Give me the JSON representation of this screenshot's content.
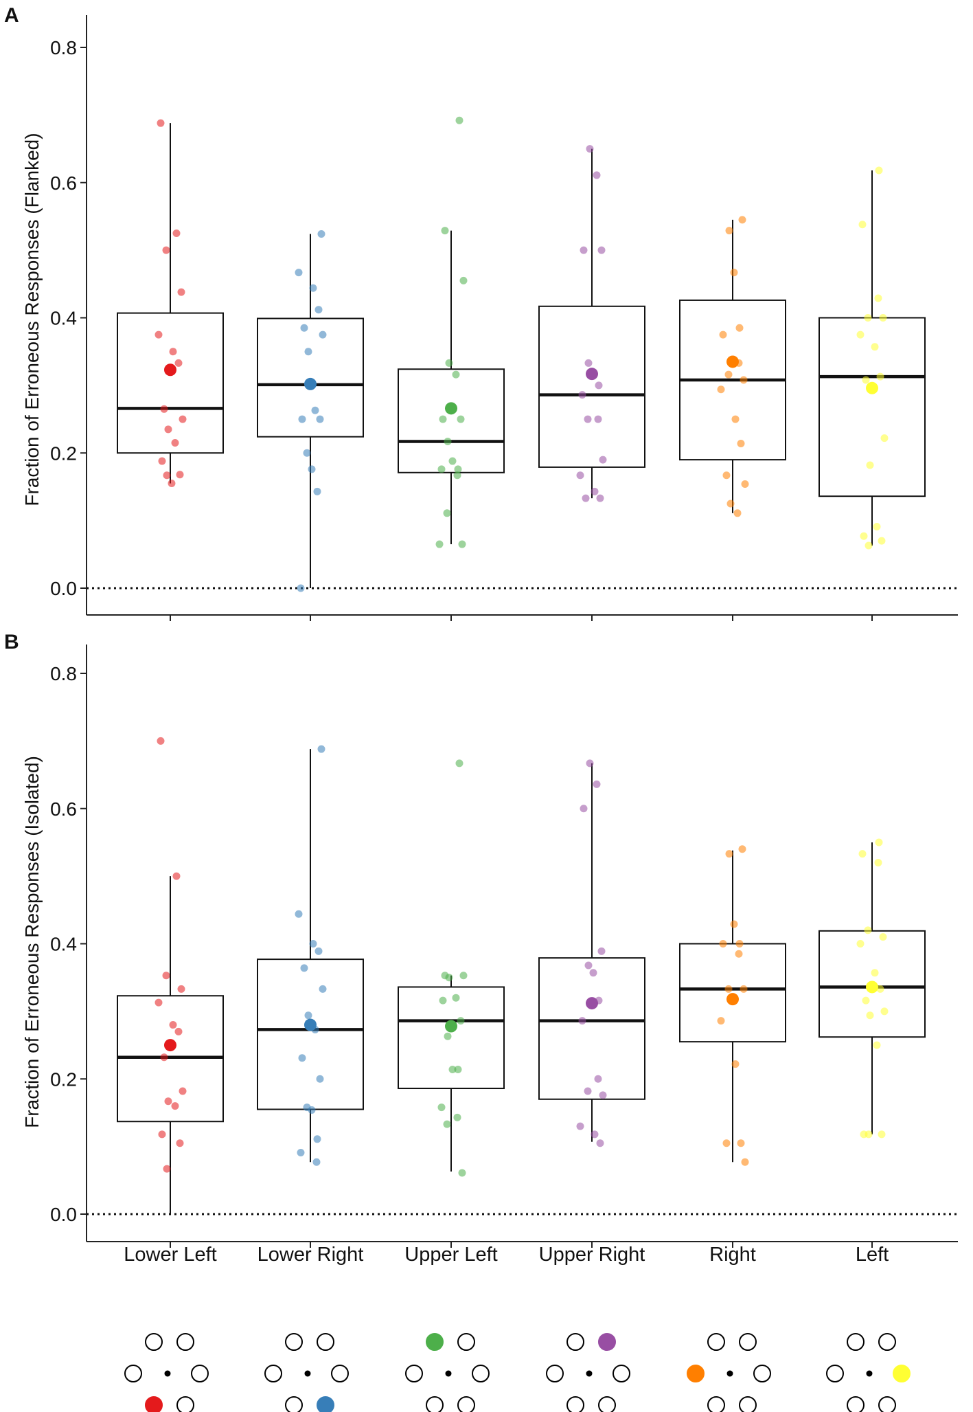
{
  "chart_data": [
    {
      "type": "boxplot",
      "panel_label": "A",
      "ylabel": "Fraction of Erroneous Responses (Flanked)",
      "ylim": [
        -0.04,
        0.85
      ],
      "yticks": [
        0.0,
        0.2,
        0.4,
        0.6,
        0.8
      ],
      "ytick_labels": [
        "0.0",
        "0.2",
        "0.4",
        "0.6",
        "0.8"
      ],
      "reference_line": 0.0,
      "categories": [
        "Lower Left",
        "Lower Right",
        "Upper Left",
        "Upper Right",
        "Right",
        "Left"
      ],
      "boxes": [
        {
          "q1": 0.2,
          "median": 0.266,
          "q3": 0.407,
          "whisker_low": 0.155,
          "whisker_high": 0.688,
          "mean": 0.323,
          "points": [
            0.688,
            0.525,
            0.5,
            0.438,
            0.375,
            0.35,
            0.333,
            0.265,
            0.25,
            0.235,
            0.215,
            0.188,
            0.168,
            0.167,
            0.155
          ]
        },
        {
          "q1": 0.224,
          "median": 0.301,
          "q3": 0.399,
          "whisker_low": 0.0,
          "whisker_high": 0.524,
          "mean": 0.302,
          "points": [
            0.524,
            0.467,
            0.444,
            0.412,
            0.385,
            0.375,
            0.35,
            0.263,
            0.25,
            0.25,
            0.2,
            0.176,
            0.143,
            0.0
          ]
        },
        {
          "q1": 0.171,
          "median": 0.217,
          "q3": 0.324,
          "whisker_low": 0.065,
          "whisker_high": 0.529,
          "mean": 0.266,
          "points": [
            0.692,
            0.529,
            0.455,
            0.333,
            0.316,
            0.25,
            0.25,
            0.217,
            0.188,
            0.176,
            0.176,
            0.167,
            0.111,
            0.065,
            0.065
          ]
        },
        {
          "q1": 0.179,
          "median": 0.286,
          "q3": 0.417,
          "whisker_low": 0.133,
          "whisker_high": 0.65,
          "mean": 0.317,
          "points": [
            0.65,
            0.611,
            0.5,
            0.5,
            0.333,
            0.316,
            0.3,
            0.286,
            0.25,
            0.25,
            0.19,
            0.167,
            0.143,
            0.133,
            0.133
          ]
        },
        {
          "q1": 0.19,
          "median": 0.308,
          "q3": 0.426,
          "whisker_low": 0.111,
          "whisker_high": 0.545,
          "mean": 0.335,
          "points": [
            0.545,
            0.529,
            0.467,
            0.385,
            0.375,
            0.333,
            0.316,
            0.308,
            0.294,
            0.25,
            0.214,
            0.167,
            0.154,
            0.125,
            0.111
          ]
        },
        {
          "q1": 0.136,
          "median": 0.313,
          "q3": 0.4,
          "whisker_low": 0.063,
          "whisker_high": 0.618,
          "mean": 0.296,
          "points": [
            0.618,
            0.538,
            0.429,
            0.4,
            0.4,
            0.375,
            0.357,
            0.313,
            0.308,
            0.222,
            0.182,
            0.091,
            0.077,
            0.07,
            0.063
          ]
        }
      ]
    },
    {
      "type": "boxplot",
      "panel_label": "B",
      "ylabel": "Fraction of Erroneous Responses (Isolated)",
      "ylim": [
        -0.04,
        0.85
      ],
      "yticks": [
        0.0,
        0.2,
        0.4,
        0.6,
        0.8
      ],
      "ytick_labels": [
        "0.0",
        "0.2",
        "0.4",
        "0.6",
        "0.8"
      ],
      "reference_line": 0.0,
      "categories": [
        "Lower Left",
        "Lower Right",
        "Upper Left",
        "Upper Right",
        "Right",
        "Left"
      ],
      "boxes": [
        {
          "q1": 0.137,
          "median": 0.232,
          "q3": 0.323,
          "whisker_low": 0.0,
          "whisker_high": 0.5,
          "mean": 0.25,
          "points": [
            0.7,
            0.5,
            0.353,
            0.333,
            0.313,
            0.28,
            0.27,
            0.232,
            0.182,
            0.167,
            0.16,
            0.118,
            0.105,
            0.067
          ]
        },
        {
          "q1": 0.155,
          "median": 0.273,
          "q3": 0.377,
          "whisker_low": 0.077,
          "whisker_high": 0.688,
          "mean": 0.28,
          "points": [
            0.688,
            0.444,
            0.4,
            0.389,
            0.364,
            0.333,
            0.294,
            0.273,
            0.231,
            0.2,
            0.158,
            0.154,
            0.111,
            0.091,
            0.077
          ]
        },
        {
          "q1": 0.186,
          "median": 0.286,
          "q3": 0.336,
          "whisker_low": 0.063,
          "whisker_high": 0.353,
          "mean": 0.278,
          "points": [
            0.667,
            0.353,
            0.353,
            0.35,
            0.32,
            0.316,
            0.286,
            0.263,
            0.214,
            0.214,
            0.158,
            0.143,
            0.133,
            0.061
          ]
        },
        {
          "q1": 0.17,
          "median": 0.286,
          "q3": 0.379,
          "whisker_low": 0.107,
          "whisker_high": 0.667,
          "mean": 0.312,
          "points": [
            0.667,
            0.636,
            0.6,
            0.389,
            0.368,
            0.357,
            0.316,
            0.286,
            0.2,
            0.182,
            0.176,
            0.13,
            0.118,
            0.105
          ]
        },
        {
          "q1": 0.255,
          "median": 0.333,
          "q3": 0.4,
          "whisker_low": 0.077,
          "whisker_high": 0.538,
          "mean": 0.318,
          "points": [
            0.54,
            0.533,
            0.429,
            0.4,
            0.4,
            0.385,
            0.333,
            0.333,
            0.286,
            0.222,
            0.105,
            0.105,
            0.077
          ]
        },
        {
          "q1": 0.262,
          "median": 0.336,
          "q3": 0.419,
          "whisker_low": 0.118,
          "whisker_high": 0.55,
          "mean": 0.336,
          "points": [
            0.55,
            0.533,
            0.52,
            0.42,
            0.41,
            0.4,
            0.357,
            0.333,
            0.316,
            0.3,
            0.294,
            0.25,
            0.118,
            0.118,
            0.118
          ]
        }
      ]
    }
  ],
  "xlabels": [
    "Lower Left",
    "Lower Right",
    "Upper Left",
    "Upper Right",
    "Right",
    "Left"
  ],
  "series_colors": [
    "#e41a1c",
    "#377eb8",
    "#4daf4a",
    "#984ea3",
    "#ff7f00",
    "#ffff33"
  ],
  "icons": [
    {
      "name": "lower-left-layout-icon",
      "highlight": 4
    },
    {
      "name": "lower-right-layout-icon",
      "highlight": 5
    },
    {
      "name": "upper-left-layout-icon",
      "highlight": 0
    },
    {
      "name": "upper-right-layout-icon",
      "highlight": 1
    },
    {
      "name": "right-layout-icon",
      "highlight": 3
    },
    {
      "name": "left-layout-icon",
      "highlight": 2
    }
  ]
}
